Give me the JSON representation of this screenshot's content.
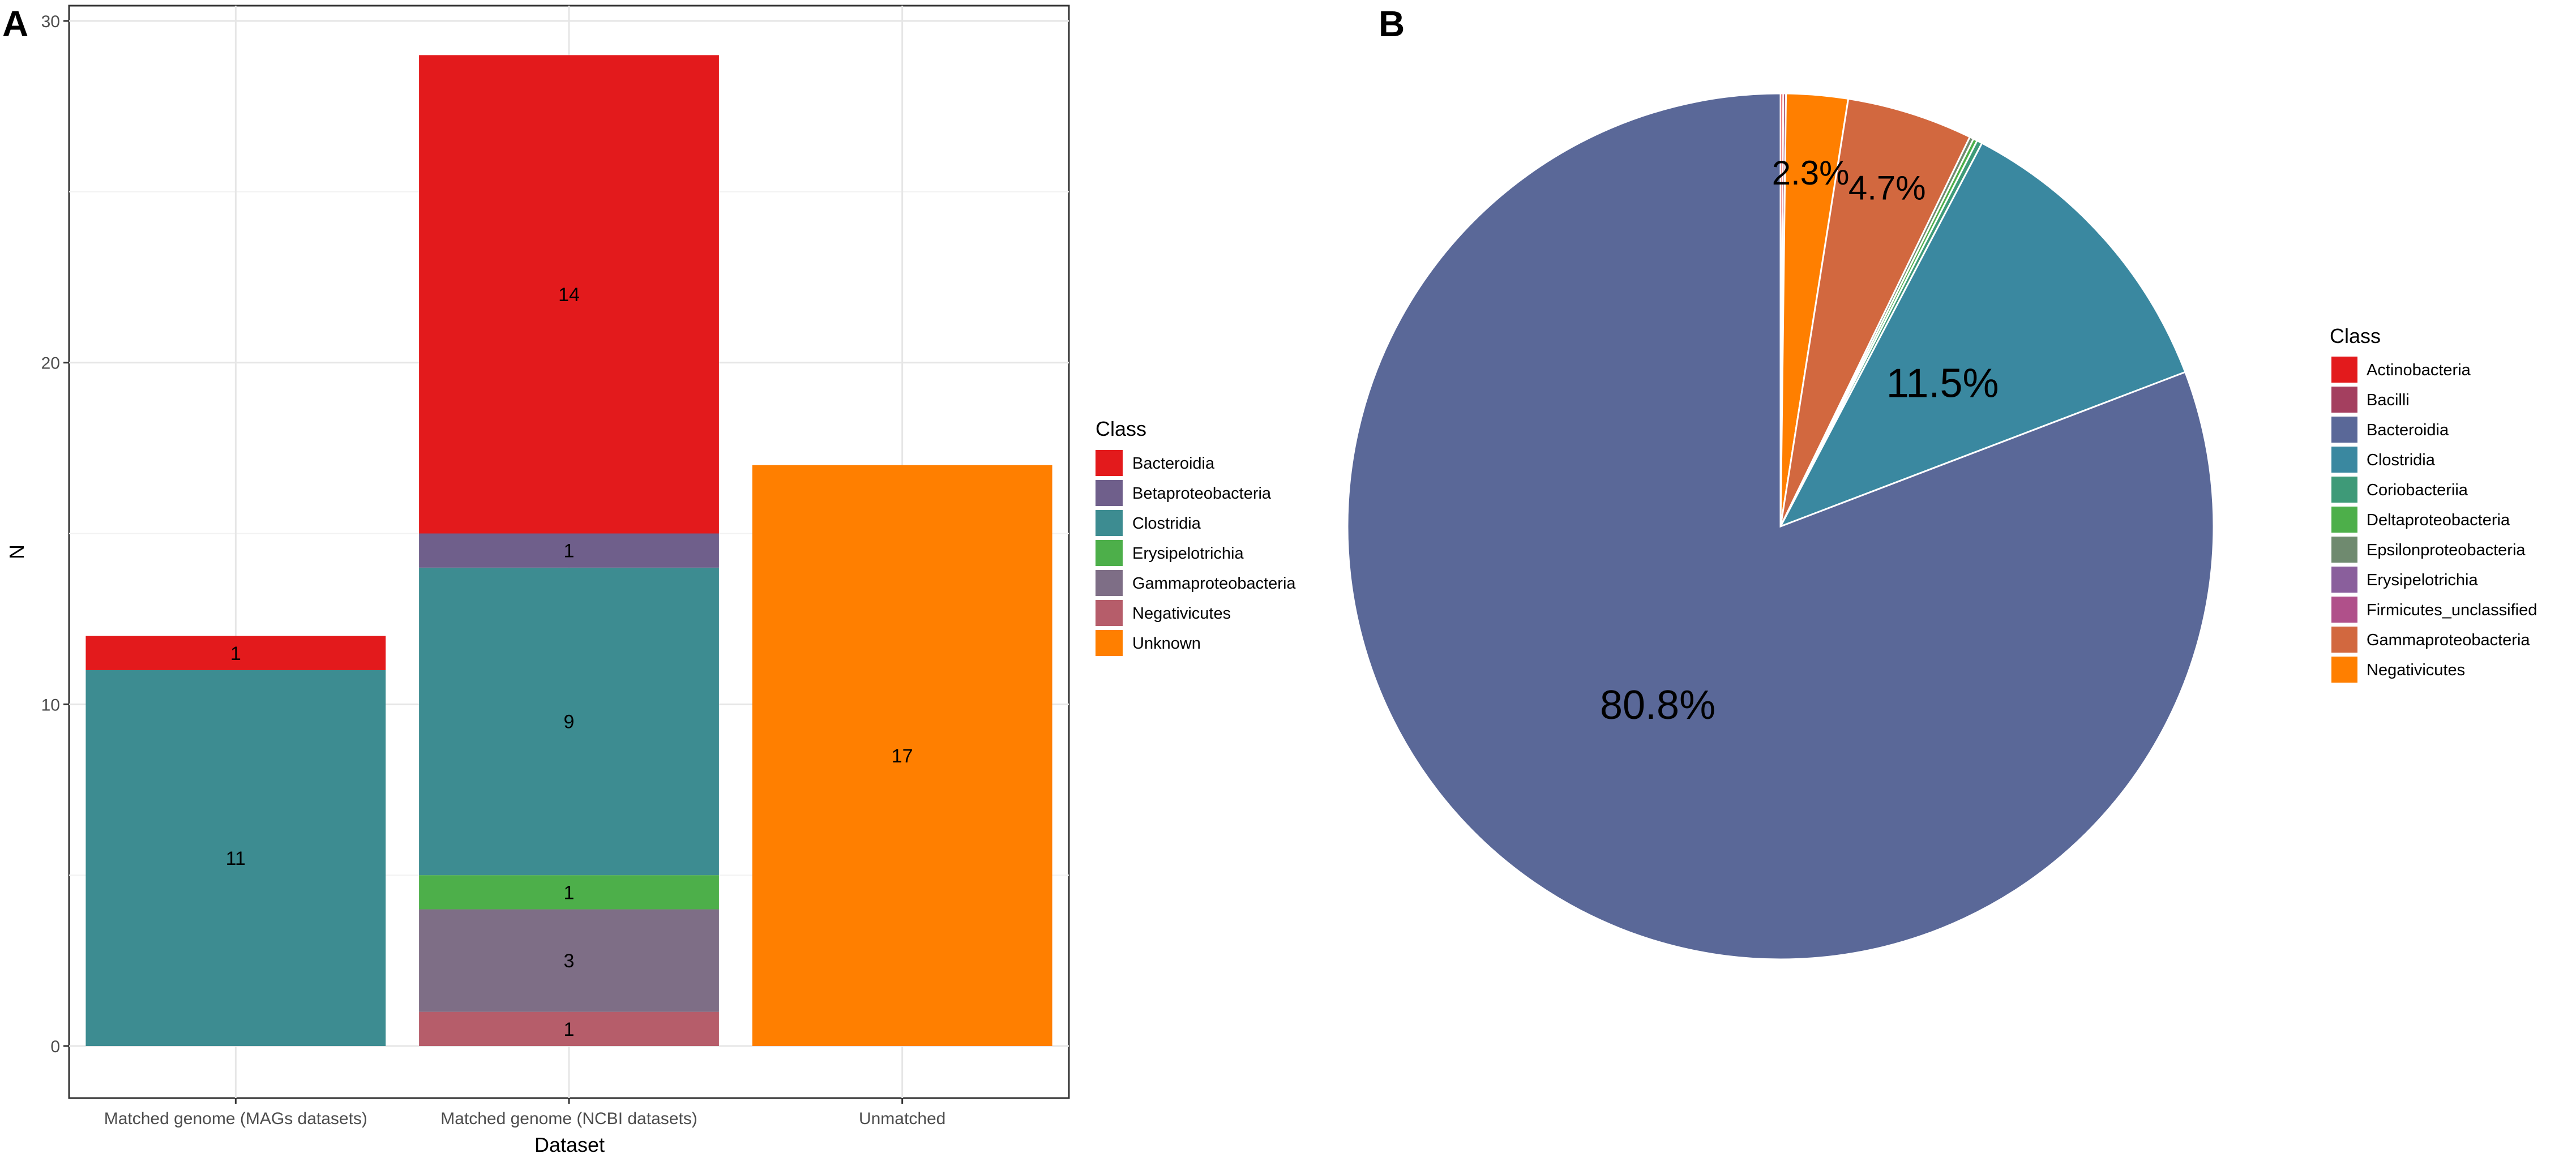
{
  "chart_data": [
    {
      "panel": "A",
      "type": "bar",
      "stacked": true,
      "xlabel": "Dataset",
      "ylabel": "N",
      "ylim": [
        0,
        30
      ],
      "yticks": [
        0,
        10,
        20,
        30
      ],
      "grid": true,
      "legend_title": "Class",
      "legend": [
        {
          "name": "Bacteroidia",
          "color": "#e31a1c"
        },
        {
          "name": "Betaproteobacteria",
          "color": "#6f5f8b"
        },
        {
          "name": "Clostridia",
          "color": "#3d8c91"
        },
        {
          "name": "Erysipelotrichia",
          "color": "#4daf4a"
        },
        {
          "name": "Gammaproteobacteria",
          "color": "#7e6e86"
        },
        {
          "name": "Negativicutes",
          "color": "#b65d6a"
        },
        {
          "name": "Unknown",
          "color": "#ff7f00"
        }
      ],
      "categories": [
        {
          "label": "Matched genome (MAGs datasets)",
          "segments": [
            {
              "class": "Clostridia",
              "value": 11
            },
            {
              "class": "Bacteroidia",
              "value": 1
            }
          ]
        },
        {
          "label": "Matched genome (NCBI datasets)",
          "segments": [
            {
              "class": "Negativicutes",
              "value": 1
            },
            {
              "class": "Gammaproteobacteria",
              "value": 3
            },
            {
              "class": "Erysipelotrichia",
              "value": 1
            },
            {
              "class": "Clostridia",
              "value": 9
            },
            {
              "class": "Betaproteobacteria",
              "value": 1
            },
            {
              "class": "Bacteroidia",
              "value": 14
            }
          ]
        },
        {
          "label": "Unmatched",
          "segments": [
            {
              "class": "Unknown",
              "value": 17
            }
          ]
        }
      ]
    },
    {
      "panel": "B",
      "type": "pie",
      "legend_title": "Class",
      "legend": [
        {
          "name": "Actinobacteria",
          "color": "#e31a1c"
        },
        {
          "name": "Bacilli",
          "color": "#a43f5f"
        },
        {
          "name": "Bacteroidia",
          "color": "#5a6898"
        },
        {
          "name": "Clostridia",
          "color": "#3a88a0"
        },
        {
          "name": "Coriobacteriia",
          "color": "#3e9a78"
        },
        {
          "name": "Deltaproteobacteria",
          "color": "#4daf4a"
        },
        {
          "name": "Epsilonproteobacteria",
          "color": "#6f8a6f"
        },
        {
          "name": "Erysipelotrichia",
          "color": "#8a5f9c"
        },
        {
          "name": "Firmicutes_unclassified",
          "color": "#b0508a"
        },
        {
          "name": "Gammaproteobacteria",
          "color": "#d2683f"
        },
        {
          "name": "Negativicutes",
          "color": "#ff7f00"
        }
      ],
      "slices": [
        {
          "class": "Actinobacteria",
          "value": 0.1,
          "label": ""
        },
        {
          "class": "Bacilli",
          "value": 0.1,
          "label": ""
        },
        {
          "class": "Negativicutes",
          "value": 2.3,
          "label": "2.3%"
        },
        {
          "class": "Gammaproteobacteria",
          "value": 4.7,
          "label": "4.7%"
        },
        {
          "class": "Epsilonproteobacteria",
          "value": 0.15,
          "label": ""
        },
        {
          "class": "Deltaproteobacteria",
          "value": 0.15,
          "label": ""
        },
        {
          "class": "Coriobacteriia",
          "value": 0.2,
          "label": ""
        },
        {
          "class": "Clostridia",
          "value": 11.5,
          "label": "11.5%"
        },
        {
          "class": "Bacteroidia",
          "value": 80.8,
          "label": "80.8%"
        }
      ]
    }
  ],
  "panels": {
    "a_label": "A",
    "b_label": "B"
  }
}
